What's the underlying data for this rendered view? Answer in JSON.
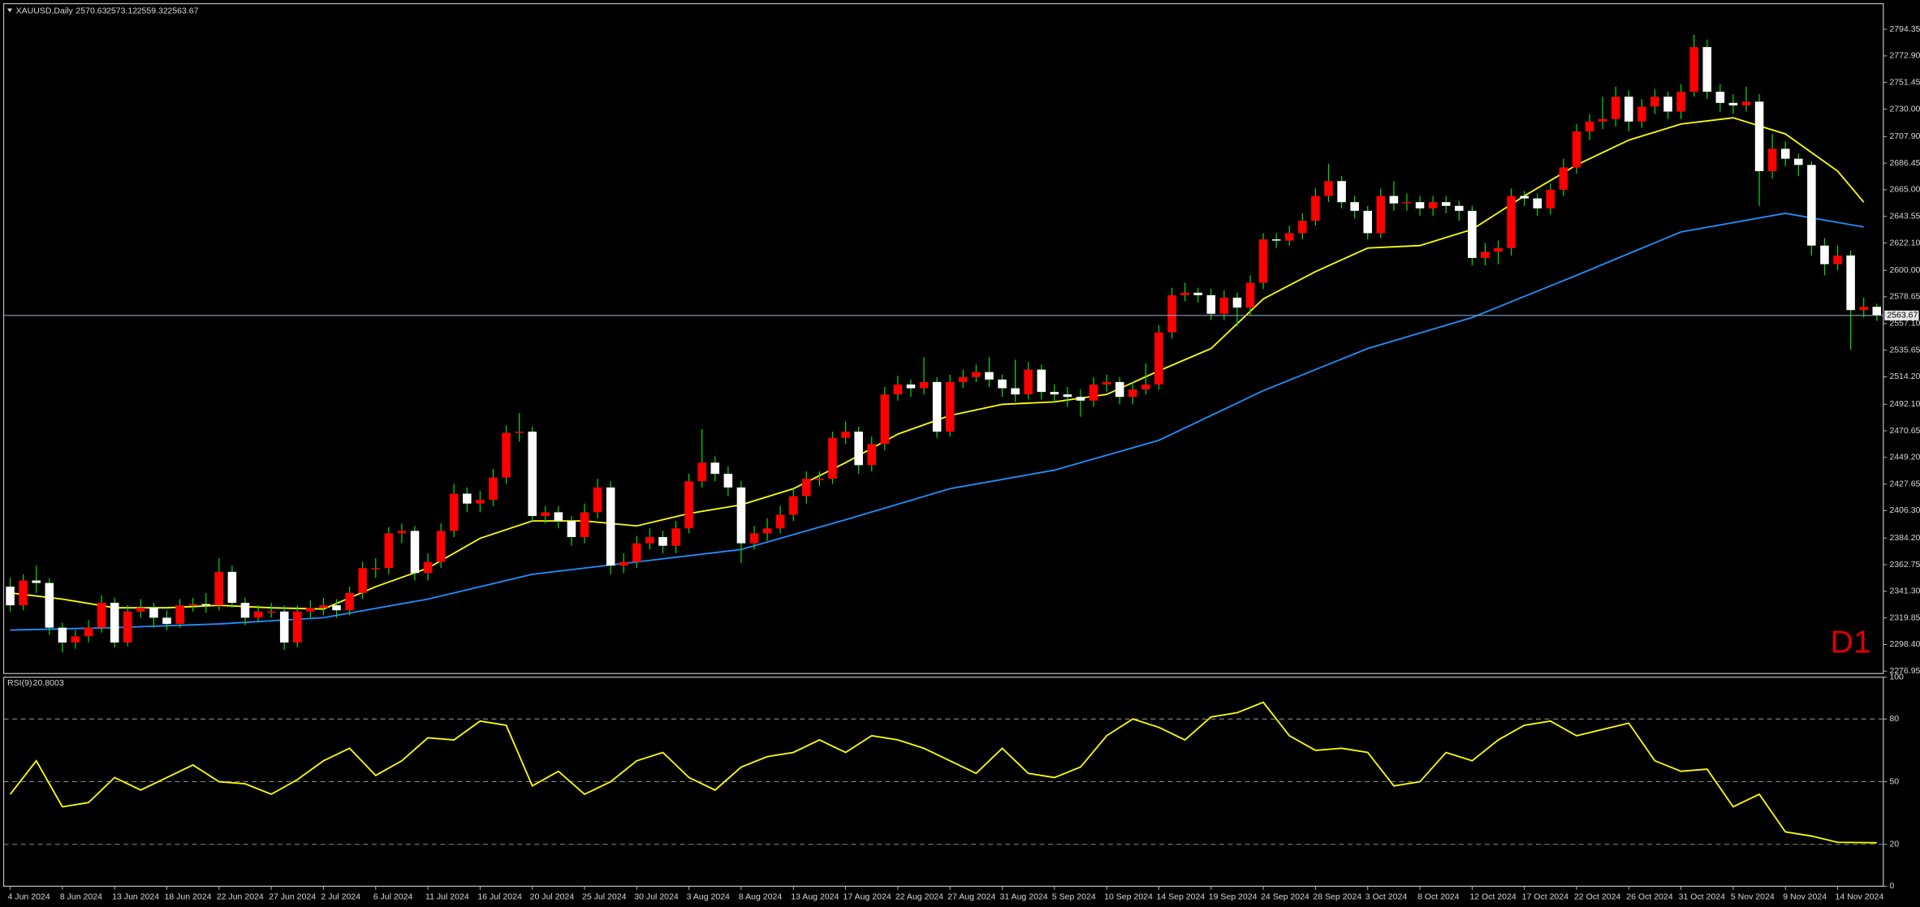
{
  "chart_data": [
    {
      "type": "candlestick",
      "symbol": "XAUUSD,Daily",
      "timeframe": "D1",
      "categories": [
        "4 Jun 2024",
        null,
        null,
        null,
        "8 Jun 2024",
        null,
        null,
        null,
        "13 Jun 2024",
        null,
        null,
        null,
        "18 Jun 2024",
        null,
        null,
        null,
        "22 Jun 2024",
        null,
        null,
        null,
        "27 Jun 2024",
        null,
        null,
        null,
        "2 Jul 2024",
        null,
        null,
        null,
        "6 Jul 2024",
        null,
        null,
        null,
        "11 Jul 2024",
        null,
        null,
        null,
        "16 Jul 2024",
        null,
        null,
        null,
        "20 Jul 2024",
        null,
        null,
        null,
        "25 Jul 2024",
        null,
        null,
        null,
        "30 Jul 2024",
        null,
        null,
        null,
        "3 Aug 2024",
        null,
        null,
        null,
        "8 Aug 2024",
        null,
        null,
        null,
        "13 Aug 2024",
        null,
        null,
        null,
        "17 Aug 2024",
        null,
        null,
        null,
        "22 Aug 2024",
        null,
        null,
        null,
        "27 Aug 2024",
        null,
        null,
        null,
        "31 Aug 2024",
        null,
        null,
        null,
        "5 Sep 2024",
        null,
        null,
        null,
        "10 Sep 2024",
        null,
        null,
        null,
        "14 Sep 2024",
        null,
        null,
        null,
        "19 Sep 2024",
        null,
        null,
        null,
        "24 Sep 2024",
        null,
        null,
        null,
        "28 Sep 2024",
        null,
        null,
        null,
        "3 Oct 2024",
        null,
        null,
        null,
        "8 Oct 2024",
        null,
        null,
        null,
        "12 Oct 2024",
        null,
        null,
        null,
        "17 Oct 2024",
        null,
        null,
        null,
        "22 Oct 2024",
        null,
        null,
        null,
        "26 Oct 2024",
        null,
        null,
        null,
        "31 Oct 2024",
        null,
        null,
        null,
        "5 Nov 2024",
        null,
        null,
        null,
        "9 Nov 2024",
        null,
        null,
        null,
        "14 Nov 2024",
        null,
        null,
        null
      ],
      "open": [
        2345,
        2330,
        2350,
        2348,
        2312,
        2300,
        2305,
        2312,
        2332,
        2300,
        2325,
        2328,
        2320,
        2315,
        2330,
        2331,
        2330,
        2357,
        2332,
        2320,
        2325,
        2325,
        2300,
        2325,
        2328,
        2330,
        2326,
        2340,
        2360,
        2360,
        2388,
        2390,
        2356,
        2365,
        2390,
        2420,
        2412,
        2415,
        2433,
        2469,
        2470,
        2402,
        2405,
        2398,
        2385,
        2405,
        2425,
        2362,
        2365,
        2380,
        2385,
        2378,
        2392,
        2430,
        2445,
        2436,
        2425,
        2380,
        2388,
        2392,
        2403,
        2418,
        2432,
        2432,
        2465,
        2470,
        2443,
        2460,
        2500,
        2508,
        2505,
        2510,
        2470,
        2510,
        2514,
        2518,
        2512,
        2505,
        2500,
        2520,
        2502,
        2500,
        2498,
        2495,
        2508,
        2510,
        2498,
        2504,
        2508,
        2550,
        2580,
        2582,
        2580,
        2565,
        2578,
        2570,
        2590,
        2625,
        2624,
        2630,
        2640,
        2660,
        2672,
        2655,
        2648,
        2630,
        2660,
        2654,
        2655,
        2650,
        2655,
        2652,
        2648,
        2610,
        2615,
        2618,
        2660,
        2658,
        2650,
        2665,
        2683,
        2712,
        2720,
        2722,
        2740,
        2720,
        2732,
        2740,
        2728,
        2744,
        2780,
        2744,
        2735,
        2733,
        2736,
        2680,
        2698,
        2690,
        2685,
        2620,
        2605,
        2612,
        2568,
        2570.63
      ],
      "high": [
        2352,
        2355,
        2362,
        2352,
        2316,
        2310,
        2318,
        2338,
        2336,
        2330,
        2335,
        2332,
        2326,
        2335,
        2336,
        2340,
        2368,
        2362,
        2336,
        2330,
        2332,
        2330,
        2330,
        2334,
        2336,
        2335,
        2345,
        2365,
        2368,
        2393,
        2396,
        2394,
        2372,
        2396,
        2428,
        2425,
        2422,
        2440,
        2475,
        2485,
        2474,
        2410,
        2410,
        2402,
        2412,
        2432,
        2430,
        2372,
        2386,
        2392,
        2390,
        2398,
        2436,
        2472,
        2450,
        2442,
        2430,
        2394,
        2400,
        2410,
        2424,
        2438,
        2438,
        2470,
        2478,
        2474,
        2466,
        2506,
        2515,
        2512,
        2530,
        2514,
        2516,
        2520,
        2524,
        2530,
        2516,
        2528,
        2526,
        2524,
        2508,
        2506,
        2504,
        2514,
        2516,
        2514,
        2510,
        2525,
        2556,
        2586,
        2590,
        2586,
        2585,
        2584,
        2582,
        2596,
        2630,
        2630,
        2636,
        2646,
        2666,
        2686,
        2676,
        2660,
        2652,
        2666,
        2672,
        2662,
        2660,
        2660,
        2660,
        2656,
        2652,
        2622,
        2624,
        2666,
        2664,
        2662,
        2670,
        2690,
        2718,
        2726,
        2740,
        2748,
        2745,
        2738,
        2746,
        2744,
        2750,
        2790,
        2786,
        2750,
        2742,
        2748,
        2742,
        2710,
        2704,
        2694,
        2688,
        2626,
        2620,
        2616,
        2578,
        2573.12
      ],
      "low": [
        2325,
        2326,
        2340,
        2306,
        2292,
        2295,
        2300,
        2308,
        2296,
        2297,
        2320,
        2312,
        2310,
        2312,
        2325,
        2324,
        2326,
        2328,
        2314,
        2316,
        2320,
        2294,
        2296,
        2320,
        2322,
        2320,
        2322,
        2335,
        2352,
        2355,
        2380,
        2350,
        2350,
        2360,
        2385,
        2405,
        2405,
        2410,
        2428,
        2462,
        2398,
        2396,
        2392,
        2378,
        2380,
        2400,
        2355,
        2356,
        2360,
        2375,
        2372,
        2372,
        2388,
        2425,
        2430,
        2418,
        2364,
        2375,
        2382,
        2388,
        2398,
        2412,
        2426,
        2428,
        2460,
        2436,
        2438,
        2455,
        2495,
        2498,
        2500,
        2465,
        2466,
        2505,
        2510,
        2506,
        2498,
        2494,
        2496,
        2496,
        2494,
        2490,
        2482,
        2490,
        2502,
        2492,
        2492,
        2500,
        2504,
        2545,
        2575,
        2574,
        2560,
        2560,
        2555,
        2564,
        2585,
        2618,
        2620,
        2625,
        2636,
        2655,
        2650,
        2642,
        2625,
        2626,
        2648,
        2648,
        2644,
        2644,
        2646,
        2640,
        2604,
        2604,
        2605,
        2612,
        2652,
        2644,
        2645,
        2660,
        2678,
        2705,
        2714,
        2716,
        2712,
        2715,
        2726,
        2722,
        2722,
        2740,
        2738,
        2728,
        2726,
        2728,
        2652,
        2674,
        2684,
        2676,
        2612,
        2596,
        2600,
        2536,
        2562,
        2559.32
      ],
      "close": [
        2330,
        2350,
        2348,
        2312,
        2300,
        2305,
        2312,
        2332,
        2300,
        2325,
        2328,
        2320,
        2315,
        2330,
        2331,
        2330,
        2357,
        2332,
        2320,
        2325,
        2325,
        2300,
        2325,
        2328,
        2330,
        2326,
        2340,
        2360,
        2360,
        2388,
        2390,
        2356,
        2365,
        2390,
        2420,
        2412,
        2415,
        2433,
        2469,
        2470,
        2402,
        2405,
        2398,
        2385,
        2405,
        2425,
        2362,
        2365,
        2380,
        2385,
        2378,
        2392,
        2430,
        2445,
        2436,
        2425,
        2380,
        2388,
        2392,
        2403,
        2418,
        2432,
        2432,
        2465,
        2470,
        2443,
        2460,
        2500,
        2508,
        2505,
        2510,
        2470,
        2510,
        2514,
        2518,
        2512,
        2505,
        2500,
        2520,
        2502,
        2500,
        2498,
        2495,
        2508,
        2510,
        2498,
        2504,
        2508,
        2550,
        2580,
        2582,
        2580,
        2565,
        2578,
        2570,
        2590,
        2625,
        2624,
        2630,
        2640,
        2660,
        2672,
        2655,
        2648,
        2630,
        2660,
        2654,
        2655,
        2650,
        2655,
        2652,
        2648,
        2610,
        2615,
        2618,
        2660,
        2658,
        2650,
        2665,
        2683,
        2712,
        2720,
        2722,
        2740,
        2720,
        2732,
        2740,
        2728,
        2744,
        2780,
        2744,
        2735,
        2733,
        2736,
        2680,
        2698,
        2690,
        2685,
        2620,
        2605,
        2612,
        2568,
        2570.63,
        2563.67
      ],
      "up_color": "#ff0000",
      "down_color": "#ffffff",
      "wick_color": "#00e000",
      "ylim": [
        2275,
        2815
      ],
      "yticks": [
        2276.95,
        {
          "value": 2298.4,
          "label": "2298.40"
        },
        2319.85,
        {
          "value": 2341.3,
          "label": "2341.30"
        },
        2362.75,
        {
          "value": 2384.2,
          "label": "2384.20"
        },
        {
          "value": 2406.3,
          "label": "2406.30"
        },
        2427.65,
        {
          "value": 2449.2,
          "label": "2449.20"
        },
        2470.65,
        {
          "value": 2492.1,
          "label": "2492.10"
        },
        {
          "value": 2514.2,
          "label": "2514.20"
        },
        2535.65,
        {
          "value": 2557.1,
          "label": "2557.10"
        },
        2578.65,
        {
          "value": 2600,
          "label": "2600.00"
        },
        {
          "value": 2622.1,
          "label": "2622.10"
        },
        2643.55,
        {
          "value": 2665,
          "label": "2665.00"
        },
        2686.45,
        {
          "value": 2707.9,
          "label": "2707.90"
        },
        {
          "value": 2730,
          "label": "2730.00"
        },
        2751.45,
        {
          "value": 2772.9,
          "label": "2772.90"
        },
        2794.35
      ],
      "overlays": [
        {
          "color": "#ffff00",
          "x": [
            0,
            4,
            8,
            12,
            16,
            20,
            24,
            28,
            32,
            36,
            40,
            44,
            48,
            52,
            56,
            60,
            64,
            68,
            72,
            76,
            80,
            84,
            88,
            92,
            96,
            100,
            104,
            108,
            112,
            116,
            120,
            124,
            128,
            132,
            136,
            140,
            142
          ],
          "values": [
            2340,
            2335,
            2328,
            2328,
            2330,
            2328,
            2327,
            2345,
            2360,
            2384,
            2398,
            2398,
            2394,
            2404,
            2411,
            2424,
            2445,
            2468,
            2483,
            2492,
            2494,
            2500,
            2519,
            2537,
            2577,
            2599,
            2618,
            2620,
            2633,
            2660,
            2685,
            2705,
            2718,
            2723,
            2710,
            2680,
            2655
          ]
        },
        {
          "color": "#1e90ff",
          "x": [
            0,
            8,
            16,
            24,
            32,
            40,
            48,
            56,
            64,
            72,
            80,
            88,
            96,
            104,
            112,
            120,
            128,
            136,
            142
          ],
          "values": [
            2310,
            2312,
            2315,
            2320,
            2335,
            2355,
            2365,
            2375,
            2399,
            2424,
            2439,
            2463,
            2503,
            2537,
            2562,
            2596,
            2631,
            2646,
            2635
          ]
        }
      ]
    },
    {
      "type": "line",
      "name": "RSI(9)",
      "color": "#ffff00",
      "x": [
        0,
        2,
        4,
        6,
        8,
        10,
        12,
        14,
        16,
        18,
        20,
        22,
        24,
        26,
        28,
        30,
        32,
        34,
        36,
        38,
        40,
        42,
        44,
        46,
        48,
        50,
        52,
        54,
        56,
        58,
        60,
        62,
        64,
        66,
        68,
        70,
        72,
        74,
        76,
        78,
        80,
        82,
        84,
        86,
        88,
        90,
        92,
        94,
        96,
        98,
        100,
        102,
        104,
        106,
        108,
        110,
        112,
        114,
        116,
        118,
        120,
        122,
        124,
        126,
        128,
        130,
        132,
        134,
        136,
        138,
        140,
        143
      ],
      "values": [
        44,
        60,
        38,
        40,
        52,
        46,
        52,
        58,
        50,
        49,
        44,
        51,
        60,
        66,
        53,
        60,
        71,
        70,
        79,
        77,
        48,
        55,
        44,
        50,
        60,
        64,
        52,
        46,
        57,
        62,
        64,
        70,
        64,
        72,
        70,
        66,
        60,
        54,
        66,
        54,
        52,
        57,
        72,
        80,
        76,
        70,
        81,
        83,
        88,
        72,
        65,
        66,
        64,
        48,
        50,
        64,
        60,
        70,
        77,
        79,
        72,
        75,
        78,
        60,
        55,
        56,
        38,
        44,
        26,
        24,
        21,
        20.8003
      ],
      "ylim": [
        0,
        100
      ],
      "yticks": [
        0,
        20,
        50,
        80,
        100
      ],
      "levels": [
        20,
        50,
        80
      ]
    }
  ]
}
